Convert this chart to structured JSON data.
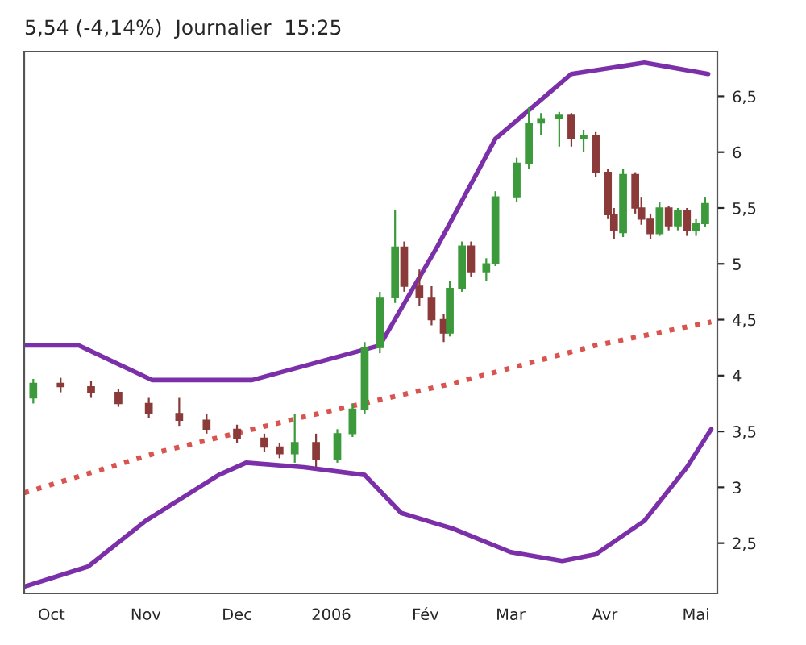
{
  "chart_data": {
    "type": "candlestick",
    "title": "5,54 (-4,14%)  Journalier  15:25",
    "x": [
      "2005-09-25",
      "2005-10-04",
      "2005-10-14",
      "2005-10-23",
      "2005-11-02",
      "2005-11-12",
      "2005-11-21",
      "2005-12-01",
      "2005-12-10",
      "2005-12-15",
      "2005-12-20",
      "2005-12-27",
      "2006-01-03",
      "2006-01-08",
      "2006-01-12",
      "2006-01-17",
      "2006-01-22",
      "2006-01-25",
      "2006-01-30",
      "2006-02-03",
      "2006-02-07",
      "2006-02-09",
      "2006-02-13",
      "2006-02-16",
      "2006-02-21",
      "2006-02-24",
      "2006-03-03",
      "2006-03-07",
      "2006-03-11",
      "2006-03-17",
      "2006-03-21",
      "2006-03-25",
      "2006-03-29",
      "2006-04-02",
      "2006-04-04",
      "2006-04-07",
      "2006-04-11",
      "2006-04-13",
      "2006-04-16",
      "2006-04-19",
      "2006-04-22",
      "2006-04-25",
      "2006-04-28",
      "2006-05-01",
      "2006-05-04"
    ],
    "ohlc": [
      [
        3.8,
        3.97,
        3.75,
        3.93
      ],
      [
        3.93,
        3.98,
        3.85,
        3.9
      ],
      [
        3.9,
        3.95,
        3.8,
        3.85
      ],
      [
        3.85,
        3.88,
        3.72,
        3.75
      ],
      [
        3.75,
        3.8,
        3.62,
        3.66
      ],
      [
        3.66,
        3.8,
        3.55,
        3.6
      ],
      [
        3.6,
        3.66,
        3.48,
        3.52
      ],
      [
        3.52,
        3.56,
        3.4,
        3.44
      ],
      [
        3.44,
        3.48,
        3.32,
        3.36
      ],
      [
        3.36,
        3.4,
        3.26,
        3.3
      ],
      [
        3.3,
        3.66,
        3.22,
        3.4
      ],
      [
        3.4,
        3.48,
        3.18,
        3.25
      ],
      [
        3.25,
        3.52,
        3.22,
        3.48
      ],
      [
        3.48,
        3.75,
        3.45,
        3.7
      ],
      [
        3.7,
        4.3,
        3.66,
        4.25
      ],
      [
        4.25,
        4.75,
        4.2,
        4.7
      ],
      [
        4.7,
        5.48,
        4.65,
        5.15
      ],
      [
        5.15,
        5.2,
        4.75,
        4.8
      ],
      [
        4.8,
        4.95,
        4.62,
        4.7
      ],
      [
        4.7,
        4.8,
        4.45,
        4.5
      ],
      [
        4.5,
        4.55,
        4.3,
        4.38
      ],
      [
        4.38,
        4.85,
        4.35,
        4.78
      ],
      [
        4.78,
        5.2,
        4.75,
        5.16
      ],
      [
        5.16,
        5.2,
        4.88,
        4.93
      ],
      [
        4.93,
        5.05,
        4.85,
        5.0
      ],
      [
        5.0,
        5.65,
        4.98,
        5.6
      ],
      [
        5.6,
        5.95,
        5.55,
        5.9
      ],
      [
        5.9,
        6.4,
        5.85,
        6.26
      ],
      [
        6.26,
        6.35,
        6.15,
        6.3
      ],
      [
        6.3,
        6.36,
        6.05,
        6.33
      ],
      [
        6.33,
        6.35,
        6.05,
        6.12
      ],
      [
        6.12,
        6.2,
        6.0,
        6.15
      ],
      [
        6.15,
        6.18,
        5.78,
        5.82
      ],
      [
        5.82,
        5.85,
        5.4,
        5.44
      ],
      [
        5.44,
        5.5,
        5.22,
        5.3
      ],
      [
        5.28,
        5.85,
        5.24,
        5.8
      ],
      [
        5.8,
        5.82,
        5.45,
        5.5
      ],
      [
        5.5,
        5.6,
        5.35,
        5.4
      ],
      [
        5.4,
        5.45,
        5.22,
        5.27
      ],
      [
        5.27,
        5.55,
        5.25,
        5.5
      ],
      [
        5.5,
        5.52,
        5.3,
        5.34
      ],
      [
        5.34,
        5.5,
        5.3,
        5.48
      ],
      [
        5.48,
        5.5,
        5.25,
        5.3
      ],
      [
        5.3,
        5.4,
        5.25,
        5.36
      ],
      [
        5.36,
        5.6,
        5.33,
        5.54
      ]
    ],
    "colors": [
      "#3c9a3c",
      "#8b3a3a",
      "#8b3a3a",
      "#8b3a3a",
      "#8b3a3a",
      "#8b3a3a",
      "#8b3a3a",
      "#8b3a3a",
      "#8b3a3a",
      "#8b3a3a",
      "#3c9a3c",
      "#8b3a3a",
      "#3c9a3c",
      "#3c9a3c",
      "#3c9a3c",
      "#3c9a3c",
      "#3c9a3c",
      "#8b3a3a",
      "#8b3a3a",
      "#8b3a3a",
      "#8b3a3a",
      "#3c9a3c",
      "#3c9a3c",
      "#8b3a3a",
      "#3c9a3c",
      "#3c9a3c",
      "#3c9a3c",
      "#3c9a3c",
      "#3c9a3c",
      "#3c9a3c",
      "#8b3a3a",
      "#3c9a3c",
      "#8b3a3a",
      "#8b3a3a",
      "#8b3a3a",
      "#3c9a3c",
      "#8b3a3a",
      "#8b3a3a",
      "#8b3a3a",
      "#3c9a3c",
      "#8b3a3a",
      "#3c9a3c",
      "#8b3a3a",
      "#3c9a3c",
      "#3c9a3c"
    ],
    "series": [
      {
        "type": "line",
        "color": "#7b2fa8",
        "x": [
          "2005-09-22",
          "2005-10-10",
          "2005-11-03",
          "2005-12-06",
          "2006-01-17",
          "2006-02-05",
          "2006-02-24",
          "2006-03-21",
          "2006-04-14",
          "2006-05-05"
        ],
        "values": [
          4.27,
          4.27,
          3.96,
          3.96,
          4.27,
          5.16,
          6.12,
          6.7,
          6.8,
          6.7
        ]
      },
      {
        "type": "line",
        "color": "#7b2fa8",
        "x": [
          "2005-09-22",
          "2005-10-13",
          "2005-11-01",
          "2005-11-25",
          "2005-12-04",
          "2005-12-23",
          "2006-01-12",
          "2006-01-24",
          "2006-02-10",
          "2006-03-01",
          "2006-03-18",
          "2006-03-29",
          "2006-04-14",
          "2006-04-28",
          "2006-05-06"
        ],
        "values": [
          2.11,
          2.29,
          2.7,
          3.11,
          3.22,
          3.18,
          3.11,
          2.77,
          2.63,
          2.42,
          2.34,
          2.4,
          2.7,
          3.18,
          3.52
        ]
      },
      {
        "type": "line",
        "color": "#d9534f",
        "line_style": "dotted",
        "x": [
          "2005-09-22",
          "2005-11-06",
          "2005-12-23",
          "2006-02-10",
          "2006-03-29",
          "2006-05-06"
        ],
        "values": [
          2.95,
          3.32,
          3.63,
          3.93,
          4.27,
          4.48
        ]
      }
    ],
    "xlim": [
      "2005-09-22",
      "2006-05-08"
    ],
    "xticks": [
      {
        "value": "2005-10-01",
        "label": "Oct"
      },
      {
        "value": "2005-11-01",
        "label": "Nov"
      },
      {
        "value": "2005-12-01",
        "label": "Dec"
      },
      {
        "value": "2006-01-01",
        "label": "2006"
      },
      {
        "value": "2006-02-01",
        "label": "Fév"
      },
      {
        "value": "2006-03-01",
        "label": "Mar"
      },
      {
        "value": "2006-04-01",
        "label": "Avr"
      },
      {
        "value": "2006-05-01",
        "label": "Mai"
      }
    ],
    "ylim": [
      2.05,
      6.9
    ],
    "yticks": [
      {
        "value": 2.5,
        "label": "2,5"
      },
      {
        "value": 3,
        "label": "3"
      },
      {
        "value": 3.5,
        "label": "3,5"
      },
      {
        "value": 4,
        "label": "4"
      },
      {
        "value": 4.5,
        "label": "4,5"
      },
      {
        "value": 5,
        "label": "5"
      },
      {
        "value": 5.5,
        "label": "5,5"
      },
      {
        "value": 6,
        "label": "6"
      },
      {
        "value": 6.5,
        "label": "6,5"
      }
    ],
    "grid": false,
    "legend": false
  }
}
